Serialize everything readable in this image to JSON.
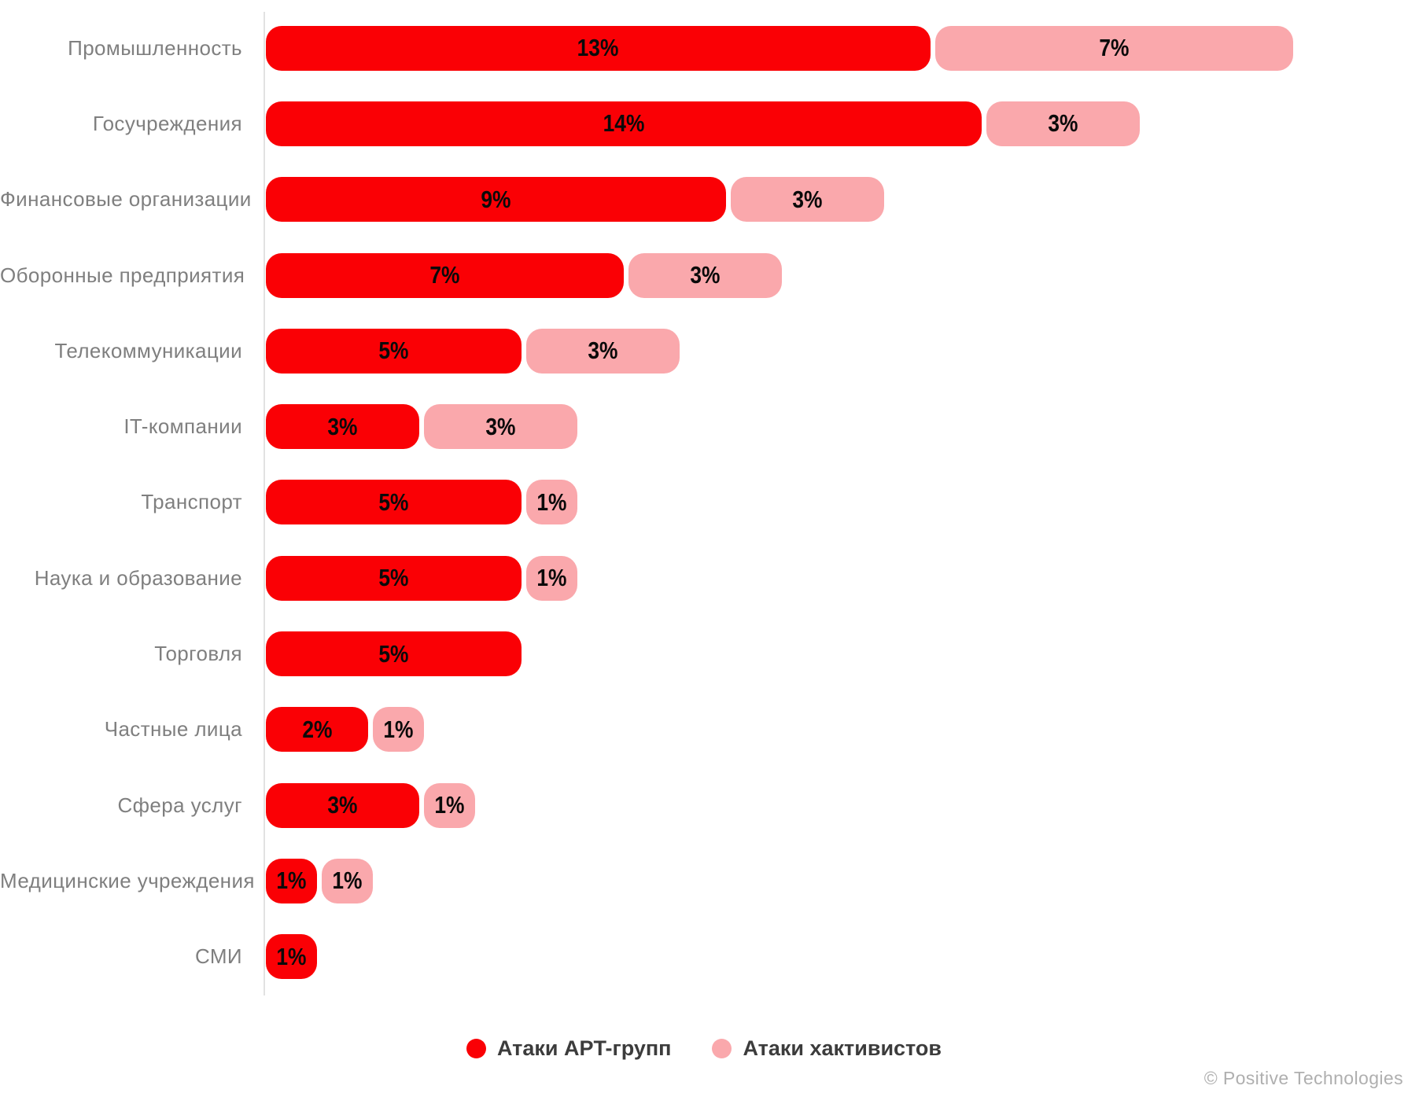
{
  "chart_data": {
    "type": "bar",
    "orientation": "horizontal",
    "stacked": true,
    "value_suffix": "%",
    "grid": false,
    "legend_position": "bottom",
    "data_labels": "inside",
    "xlim": [
      0,
      21
    ],
    "categories": [
      "Промышленность",
      "Госучреждения",
      "Финансовые организации",
      "Оборонные предприятия",
      "Телекоммуникации",
      "IT-компании",
      "Транспорт",
      "Наука и образование",
      "Торговля",
      "Частные лица",
      "Сфера услуг",
      "Медицинские учреждения",
      "СМИ"
    ],
    "series": [
      {
        "name": "Атаки APT-групп",
        "color": "#FA0005",
        "values": [
          13,
          14,
          9,
          7,
          5,
          3,
          5,
          5,
          5,
          2,
          3,
          1,
          1
        ]
      },
      {
        "name": "Атаки хактивистов",
        "color": "#FAA8AC",
        "values": [
          7,
          3,
          3,
          3,
          3,
          3,
          1,
          1,
          null,
          1,
          1,
          1,
          null
        ]
      }
    ]
  },
  "colors": {
    "axis_line": "#E2E2E2",
    "category_label": "#7F7F7F",
    "value_label": "#0A0A0A",
    "legend_text": "#3C3C3C",
    "footer_text": "#AFAFAF"
  },
  "footer": {
    "copyright": "© Positive Technologies"
  }
}
